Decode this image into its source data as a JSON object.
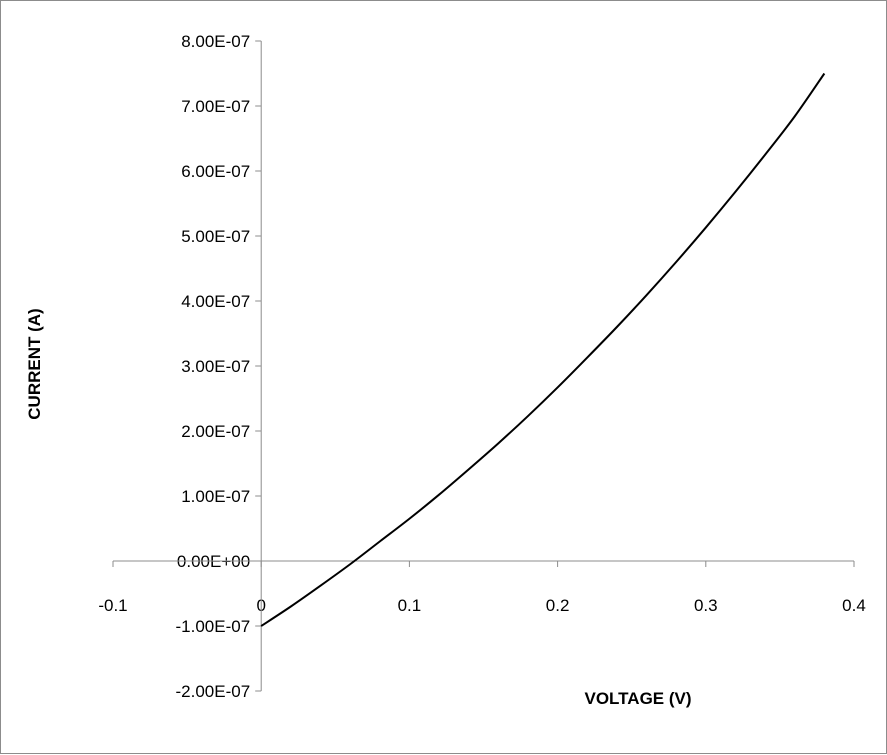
{
  "chart_data": {
    "type": "line",
    "title": "",
    "xlabel": "VOLTAGE (V)",
    "ylabel": "CURRENT (A)",
    "xlim": [
      -0.1,
      0.4
    ],
    "ylim": [
      -2e-07,
      8e-07
    ],
    "x_ticks": [
      -0.1,
      0,
      0.1,
      0.2,
      0.3,
      0.4
    ],
    "x_tick_labels": [
      "-0.1",
      "0",
      "0.1",
      "0.2",
      "0.3",
      "0.4"
    ],
    "y_ticks": [
      8e-07,
      7e-07,
      6e-07,
      5e-07,
      4e-07,
      3e-07,
      2e-07,
      1e-07,
      0,
      -1e-07,
      -2e-07
    ],
    "y_tick_labels": [
      "8.00E-07",
      "7.00E-07",
      "6.00E-07",
      "5.00E-07",
      "4.00E-07",
      "3.00E-07",
      "2.00E-07",
      "1.00E-07",
      "0.00E+00",
      "-1.00E-07",
      "-2.00E-07"
    ],
    "grid": false,
    "legend": "none",
    "series": [
      {
        "color": "#000000",
        "x": [
          0,
          0.02,
          0.04,
          0.06,
          0.08,
          0.1,
          0.12,
          0.14,
          0.16,
          0.18,
          0.2,
          0.22,
          0.24,
          0.26,
          0.28,
          0.3,
          0.32,
          0.34,
          0.36,
          0.38
        ],
        "y": [
          -1e-07,
          -7e-08,
          -3.8e-08,
          -5e-09,
          3e-08,
          6.5e-08,
          1.02e-07,
          1.41e-07,
          1.81e-07,
          2.23e-07,
          2.67e-07,
          3.13e-07,
          3.6e-07,
          4.09e-07,
          4.6e-07,
          5.13e-07,
          5.68e-07,
          6.25e-07,
          6.84e-07,
          7.5e-07
        ]
      }
    ]
  }
}
